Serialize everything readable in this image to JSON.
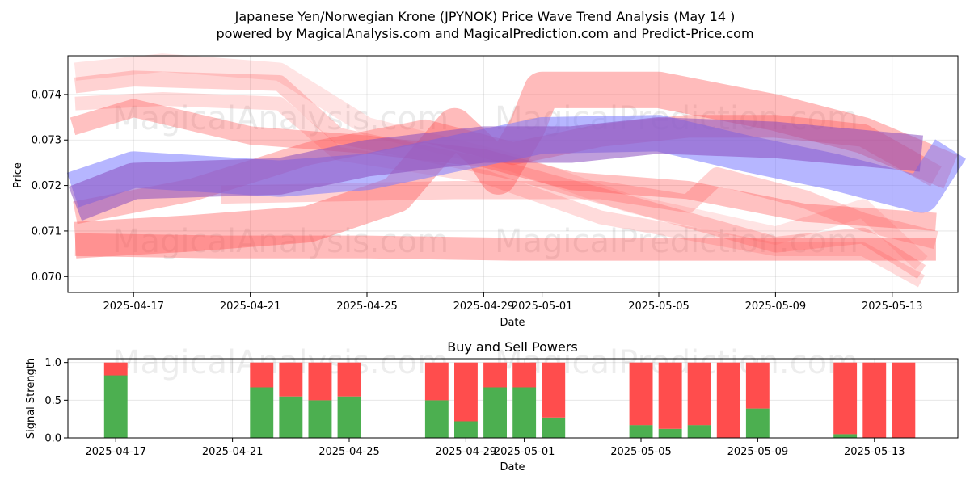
{
  "figure": {
    "title_line1": "Japanese Yen/Norwegian Krone (JPYNOK) Price Wave Trend Analysis (May 14 )",
    "title_line2": "powered by MagicalAnalysis.com and MagicalPrediction.com and Predict-Price.com",
    "watermarks": [
      "MagicalAnalysis.com",
      "MagicalPrediction.com"
    ]
  },
  "chart_data": [
    {
      "type": "area",
      "title": "",
      "xlabel": "Date",
      "ylabel": "Price",
      "x_ticks": [
        "2025-04-17",
        "2025-04-21",
        "2025-04-25",
        "2025-04-29",
        "2025-05-01",
        "2025-05-05",
        "2025-05-09",
        "2025-05-13"
      ],
      "y_ticks": [
        "0.070",
        "0.071",
        "0.072",
        "0.073",
        "0.074"
      ],
      "ylim": [
        0.06965,
        0.07485
      ],
      "xlim": [
        "2025-04-14T18:00",
        "2025-05-15T06:00"
      ],
      "grid": true,
      "colors": {
        "sell_band": "#ff4d4d",
        "buy_band": "#7a7aff",
        "purple_band": "#8a4fbf"
      },
      "series": [
        {
          "color": "red",
          "points": [
            [
              "2025-04-15",
              0.0742
            ],
            [
              "2025-04-17",
              0.07435
            ],
            [
              "2025-04-22",
              0.07425
            ],
            [
              "2025-04-24",
              0.0731
            ],
            [
              "2025-04-30",
              0.0723
            ],
            [
              "2025-05-04",
              0.0716
            ],
            [
              "2025-05-09",
              0.0707
            ],
            [
              "2025-05-12",
              0.0709
            ],
            [
              "2025-05-14",
              0.0701
            ]
          ],
          "width": 0.00035,
          "alpha": 0.25
        },
        {
          "color": "red",
          "points": [
            [
              "2025-04-15",
              0.0745
            ],
            [
              "2025-04-18",
              0.0747
            ],
            [
              "2025-04-22",
              0.0745
            ],
            [
              "2025-04-25",
              0.0733
            ],
            [
              "2025-04-30",
              0.0725
            ],
            [
              "2025-05-04",
              0.0716
            ],
            [
              "2025-05-09",
              0.0709
            ],
            [
              "2025-05-12",
              0.0715
            ],
            [
              "2025-05-14",
              0.0703
            ]
          ],
          "width": 0.0004,
          "alpha": 0.15
        },
        {
          "color": "red",
          "points": [
            [
              "2025-04-15",
              0.0738
            ],
            [
              "2025-04-18",
              0.0739
            ],
            [
              "2025-04-22",
              0.0738
            ],
            [
              "2025-04-24",
              0.0727
            ],
            [
              "2025-04-29",
              0.0722
            ],
            [
              "2025-05-03",
              0.0713
            ],
            [
              "2025-05-09",
              0.0706
            ],
            [
              "2025-05-12",
              0.0706
            ],
            [
              "2025-05-14",
              0.0699
            ]
          ],
          "width": 0.0003,
          "alpha": 0.2
        },
        {
          "color": "red",
          "points": [
            [
              "2025-04-14T22:00",
              0.0733
            ],
            [
              "2025-04-17",
              0.0737
            ],
            [
              "2025-04-21",
              0.0731
            ],
            [
              "2025-04-25",
              0.0729
            ],
            [
              "2025-04-29",
              0.0726
            ],
            [
              "2025-05-02",
              0.0721
            ],
            [
              "2025-05-06",
              0.0719
            ],
            [
              "2025-05-10",
              0.0714
            ],
            [
              "2025-05-14T12:00",
              0.0712
            ]
          ],
          "width": 0.0004,
          "alpha": 0.35
        },
        {
          "color": "red",
          "points": [
            [
              "2025-04-15",
              0.0714
            ],
            [
              "2025-04-19",
              0.0719
            ],
            [
              "2025-04-23",
              0.0727
            ],
            [
              "2025-04-27",
              0.0732
            ],
            [
              "2025-04-30",
              0.0727
            ],
            [
              "2025-05-03",
              0.0731
            ],
            [
              "2025-05-06",
              0.0733
            ],
            [
              "2025-05-09",
              0.0733
            ],
            [
              "2025-05-12",
              0.0731
            ],
            [
              "2025-05-14T12:00",
              0.0722
            ]
          ],
          "width": 0.0005,
          "alpha": 0.35
        },
        {
          "color": "red",
          "points": [
            [
              "2025-04-15",
              0.0708
            ],
            [
              "2025-04-19",
              0.07095
            ],
            [
              "2025-04-23",
              0.07115
            ],
            [
              "2025-04-26",
              0.0718
            ],
            [
              "2025-04-28",
              0.0733
            ],
            [
              "2025-04-29",
              0.0727
            ],
            [
              "2025-04-29T12:00",
              0.0722
            ],
            [
              "2025-04-30T12:00",
              0.0733
            ],
            [
              "2025-05-01",
              0.0741
            ],
            [
              "2025-05-05",
              0.0741
            ],
            [
              "2025-05-09",
              0.0736
            ],
            [
              "2025-05-12",
              0.0731
            ],
            [
              "2025-05-15",
              0.0723
            ]
          ],
          "width": 0.0008,
          "alpha": 0.38
        },
        {
          "color": "red",
          "points": [
            [
              "2025-04-15",
              0.0707
            ],
            [
              "2025-04-20",
              0.07065
            ],
            [
              "2025-04-25",
              0.07065
            ],
            [
              "2025-04-30",
              0.0706
            ],
            [
              "2025-05-05",
              0.0706
            ],
            [
              "2025-05-10",
              0.0706
            ],
            [
              "2025-05-14T12:00",
              0.0706
            ]
          ],
          "width": 0.0005,
          "alpha": 0.38
        },
        {
          "color": "red",
          "points": [
            [
              "2025-04-20",
              0.0718
            ],
            [
              "2025-04-28",
              0.0719
            ],
            [
              "2025-05-03",
              0.0719
            ],
            [
              "2025-05-06",
              0.0716
            ],
            [
              "2025-05-07",
              0.0722
            ],
            [
              "2025-05-10",
              0.0717
            ],
            [
              "2025-05-12",
              0.0712
            ],
            [
              "2025-05-14T12:00",
              0.0708
            ]
          ],
          "width": 0.0004,
          "alpha": 0.25
        },
        {
          "color": "blue",
          "points": [
            [
              "2025-04-14T22:00",
              0.0719
            ],
            [
              "2025-04-17",
              0.07235
            ],
            [
              "2025-04-22",
              0.07215
            ],
            [
              "2025-04-25",
              0.0723
            ],
            [
              "2025-04-28",
              0.0727
            ],
            [
              "2025-05-01",
              0.0731
            ],
            [
              "2025-05-05",
              0.07315
            ],
            [
              "2025-05-08",
              0.0727
            ],
            [
              "2025-05-11",
              0.0723
            ],
            [
              "2025-05-14",
              0.0718
            ],
            [
              "2025-05-15",
              0.0728
            ]
          ],
          "width": 0.0008,
          "alpha": 0.55
        },
        {
          "color": "purple",
          "points": [
            [
              "2025-04-15",
              0.0716
            ],
            [
              "2025-04-17",
              0.0721
            ],
            [
              "2025-04-22",
              0.0722
            ],
            [
              "2025-04-25",
              0.0726
            ],
            [
              "2025-04-29",
              0.0729
            ],
            [
              "2025-05-02",
              0.0729
            ],
            [
              "2025-05-05",
              0.0731
            ],
            [
              "2025-05-09",
              0.073
            ],
            [
              "2025-05-14",
              0.0727
            ]
          ],
          "width": 0.0008,
          "alpha": 0.55
        }
      ]
    },
    {
      "type": "bar",
      "title": "Buy and Sell Powers",
      "xlabel": "Date",
      "ylabel": "Signal Strength",
      "x_ticks": [
        "2025-04-17",
        "2025-04-21",
        "2025-04-25",
        "2025-04-29",
        "2025-05-01",
        "2025-05-05",
        "2025-05-09",
        "2025-05-13"
      ],
      "y_ticks": [
        "0.0",
        "0.5",
        "1.0"
      ],
      "ylim": [
        0,
        1.05
      ],
      "xlim": [
        "2025-04-14T18:00",
        "2025-05-15T06:00"
      ],
      "grid": true,
      "colors": {
        "buy": "#4caf50",
        "sell": "#ff4d4d"
      },
      "categories": [
        "2025-04-17",
        "2025-04-22",
        "2025-04-23",
        "2025-04-24",
        "2025-04-25",
        "2025-04-28",
        "2025-04-29",
        "2025-04-30",
        "2025-05-01",
        "2025-05-02",
        "2025-05-05",
        "2025-05-06",
        "2025-05-07",
        "2025-05-08",
        "2025-05-09",
        "2025-05-12",
        "2025-05-13",
        "2025-05-14"
      ],
      "series": [
        {
          "values": [
            0.83,
            0.67,
            0.55,
            0.5,
            0.55,
            0.5,
            0.22,
            0.67,
            0.67,
            0.27,
            0.17,
            0.12,
            0.17,
            0.0,
            0.39,
            0.05,
            0.0,
            0.0
          ]
        },
        {
          "values": [
            0.17,
            0.33,
            0.45,
            0.5,
            0.45,
            0.5,
            0.78,
            0.33,
            0.33,
            0.73,
            0.83,
            0.88,
            0.83,
            1.0,
            0.61,
            0.95,
            1.0,
            1.0
          ]
        }
      ]
    }
  ]
}
